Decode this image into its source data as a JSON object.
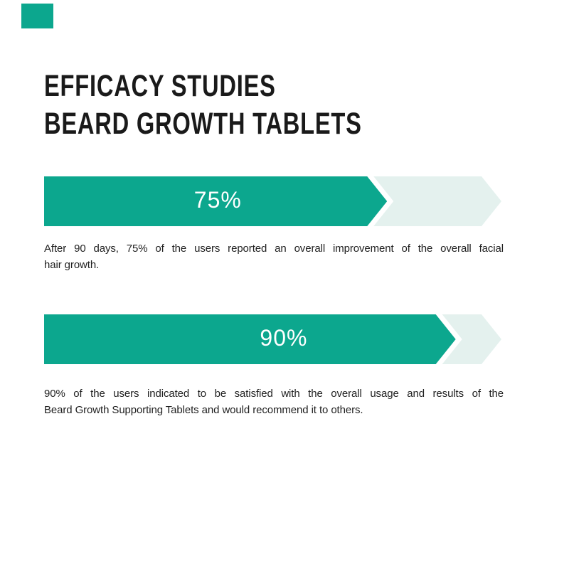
{
  "colors": {
    "teal": "#0ca78e",
    "mint_track": "#e4f1ee",
    "title_text": "#1a1a1a",
    "body_text": "#1f1f1f",
    "percent_text": "#ffffff",
    "page_background": "#ffffff"
  },
  "header": {
    "title_line1": "EFFICACY STUDIES",
    "title_line2": "BEARD GROWTH TABLETS"
  },
  "chart_data": {
    "type": "bar",
    "orientation": "horizontal",
    "title": "EFFICACY STUDIES",
    "subtitle": "BEARD GROWTH TABLETS",
    "unit": "%",
    "xlim": [
      0,
      100
    ],
    "grid": false,
    "legend": false,
    "bars": [
      {
        "value": 75,
        "label": "75%",
        "description": "After 90 days, 75% of the users reported an overall improvement of the overall facial hair growth.",
        "description_lines": [
          "After 90 days, 75% of the users reported an overall improvement of the overall facial",
          "hair growth."
        ]
      },
      {
        "value": 90,
        "label": "90%",
        "description": "90% of the users indicated to be satisfied with the overall usage and results of the Beard Growth Supporting Tablets and would recommend it to others.",
        "description_lines": [
          "90% of the users indicated to be satisfied with the overall usage and results of the",
          "Beard Growth Supporting Tablets and would recommend it to others."
        ]
      }
    ]
  }
}
